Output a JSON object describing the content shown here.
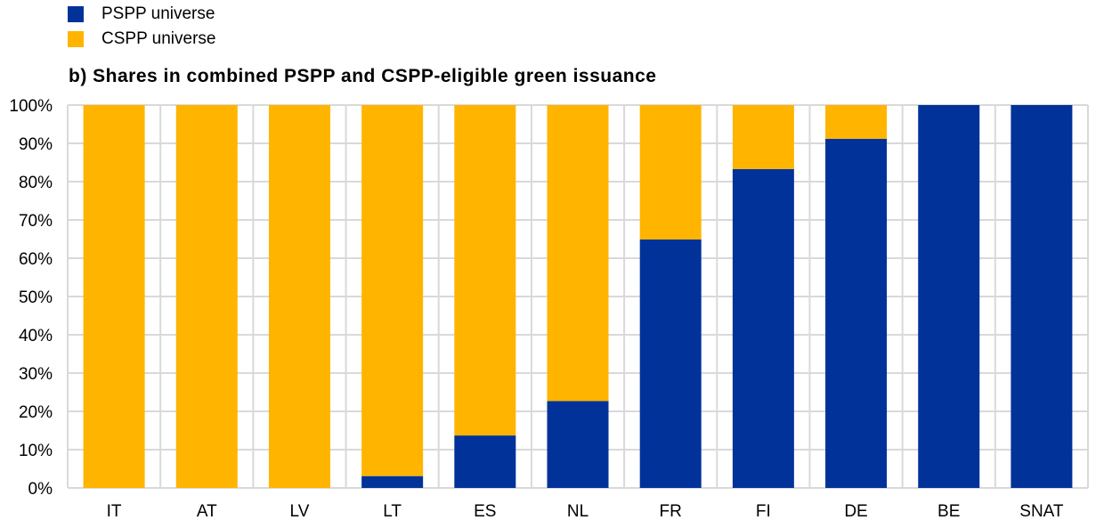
{
  "legend": [
    {
      "name": "PSPP universe",
      "color": "#003299"
    },
    {
      "name": "CSPP universe",
      "color": "#FFB400"
    }
  ],
  "chart_data": {
    "type": "bar",
    "stacked": true,
    "title": "b) Shares in combined PSPP and CSPP-eligible green issuance",
    "xlabel": "",
    "ylabel": "",
    "categories": [
      "IT",
      "AT",
      "LV",
      "LT",
      "ES",
      "NL",
      "FR",
      "FI",
      "DE",
      "BE",
      "SNAT"
    ],
    "series": [
      {
        "name": "PSPP universe",
        "color": "#003299",
        "values": [
          0,
          0,
          0,
          3.1,
          13.7,
          22.7,
          64.9,
          83.3,
          91.2,
          100,
          100
        ]
      },
      {
        "name": "CSPP universe",
        "color": "#FFB400",
        "values": [
          100,
          100,
          100,
          96.9,
          86.3,
          77.3,
          35.1,
          16.7,
          8.8,
          0,
          0
        ]
      }
    ],
    "ylim": [
      0,
      100
    ],
    "yticks": [
      0,
      10,
      20,
      30,
      40,
      50,
      60,
      70,
      80,
      90,
      100
    ],
    "ytick_labels": [
      "0%",
      "10%",
      "20%",
      "30%",
      "40%",
      "50%",
      "60%",
      "70%",
      "80%",
      "90%",
      "100%"
    ],
    "grid": true,
    "legend_position": "top-left"
  }
}
